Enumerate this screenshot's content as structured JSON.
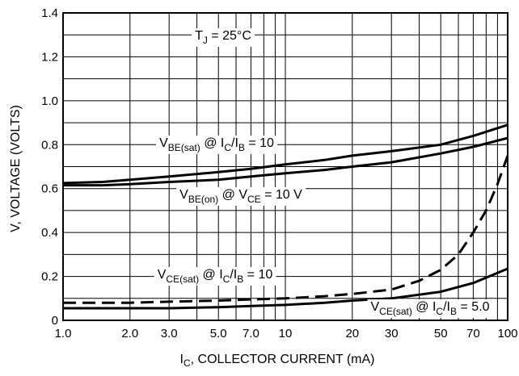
{
  "chart_data": {
    "type": "line",
    "title": "",
    "xlabel": {
      "main": "I",
      "sub": "C",
      "rest": ", COLLECTOR CURRENT (mA)"
    },
    "ylabel": "V, VOLTAGE (VOLTS)",
    "xscale": "log",
    "xlim": [
      1,
      100
    ],
    "ylim": [
      0,
      1.4
    ],
    "grid": true,
    "x_ticks": [
      1.0,
      2.0,
      3.0,
      5.0,
      7.0,
      10,
      20,
      30,
      50,
      70,
      100
    ],
    "x_tick_labels": [
      "1.0",
      "2.0",
      "3.0",
      "5.0",
      "7.0",
      "10",
      "20",
      "30",
      "50",
      "70",
      "100"
    ],
    "y_ticks": [
      0,
      0.2,
      0.4,
      0.6,
      0.8,
      1.0,
      1.2,
      1.4
    ],
    "y_tick_labels": [
      "0",
      "0.2",
      "0.4",
      "0.6",
      "0.8",
      "1.0",
      "1.2",
      "1.4"
    ],
    "series": [
      {
        "key": "vbe_sat",
        "style": "solid",
        "points": [
          [
            1,
            0.625
          ],
          [
            1.5,
            0.63
          ],
          [
            2,
            0.64
          ],
          [
            3,
            0.655
          ],
          [
            5,
            0.675
          ],
          [
            7,
            0.69
          ],
          [
            10,
            0.71
          ],
          [
            15,
            0.73
          ],
          [
            20,
            0.75
          ],
          [
            30,
            0.77
          ],
          [
            50,
            0.8
          ],
          [
            70,
            0.84
          ],
          [
            100,
            0.89
          ]
        ]
      },
      {
        "key": "vbe_on",
        "style": "solid",
        "points": [
          [
            1,
            0.615
          ],
          [
            1.5,
            0.615
          ],
          [
            2,
            0.62
          ],
          [
            3,
            0.63
          ],
          [
            5,
            0.64
          ],
          [
            7,
            0.655
          ],
          [
            10,
            0.67
          ],
          [
            15,
            0.685
          ],
          [
            20,
            0.7
          ],
          [
            30,
            0.72
          ],
          [
            50,
            0.76
          ],
          [
            70,
            0.79
          ],
          [
            100,
            0.83
          ]
        ]
      },
      {
        "key": "vce_sat_10",
        "style": "dashed",
        "points": [
          [
            1,
            0.08
          ],
          [
            2,
            0.08
          ],
          [
            3,
            0.085
          ],
          [
            5,
            0.09
          ],
          [
            7,
            0.095
          ],
          [
            10,
            0.1
          ],
          [
            15,
            0.11
          ],
          [
            20,
            0.12
          ],
          [
            30,
            0.14
          ],
          [
            40,
            0.18
          ],
          [
            50,
            0.23
          ],
          [
            60,
            0.3
          ],
          [
            70,
            0.4
          ],
          [
            80,
            0.5
          ],
          [
            90,
            0.62
          ],
          [
            100,
            0.75
          ]
        ]
      },
      {
        "key": "vce_sat_5",
        "style": "solid",
        "points": [
          [
            1,
            0.055
          ],
          [
            2,
            0.055
          ],
          [
            3,
            0.055
          ],
          [
            5,
            0.06
          ],
          [
            7,
            0.065
          ],
          [
            10,
            0.07
          ],
          [
            15,
            0.08
          ],
          [
            20,
            0.09
          ],
          [
            30,
            0.1
          ],
          [
            50,
            0.13
          ],
          [
            70,
            0.17
          ],
          [
            100,
            0.235
          ]
        ]
      }
    ],
    "annotations": [
      {
        "key": "tj",
        "parts": [
          {
            "t": "T"
          },
          {
            "t": "J",
            "sub": true
          },
          {
            "t": " = 25°C"
          }
        ]
      },
      {
        "key": "vbe_sat_label",
        "parts": [
          {
            "t": "V"
          },
          {
            "t": "BE(sat)",
            "sub": true
          },
          {
            "t": " @ I"
          },
          {
            "t": "C",
            "sub": true
          },
          {
            "t": "/I"
          },
          {
            "t": "B",
            "sub": true
          },
          {
            "t": " = 10"
          }
        ]
      },
      {
        "key": "vbe_on_label",
        "parts": [
          {
            "t": "V"
          },
          {
            "t": "BE(on)",
            "sub": true
          },
          {
            "t": " @ V"
          },
          {
            "t": "CE",
            "sub": true
          },
          {
            "t": " = 10 V"
          }
        ]
      },
      {
        "key": "vce_sat_10_label",
        "parts": [
          {
            "t": "V"
          },
          {
            "t": "CE(sat)",
            "sub": true
          },
          {
            "t": " @ I"
          },
          {
            "t": "C",
            "sub": true
          },
          {
            "t": "/I"
          },
          {
            "t": "B",
            "sub": true
          },
          {
            "t": " = 10"
          }
        ]
      },
      {
        "key": "vce_sat_5_label",
        "parts": [
          {
            "t": "V"
          },
          {
            "t": "CE(sat)",
            "sub": true
          },
          {
            "t": " @ I"
          },
          {
            "t": "C",
            "sub": true
          },
          {
            "t": "/I"
          },
          {
            "t": "B",
            "sub": true
          },
          {
            "t": " = 5.0"
          }
        ]
      }
    ]
  }
}
